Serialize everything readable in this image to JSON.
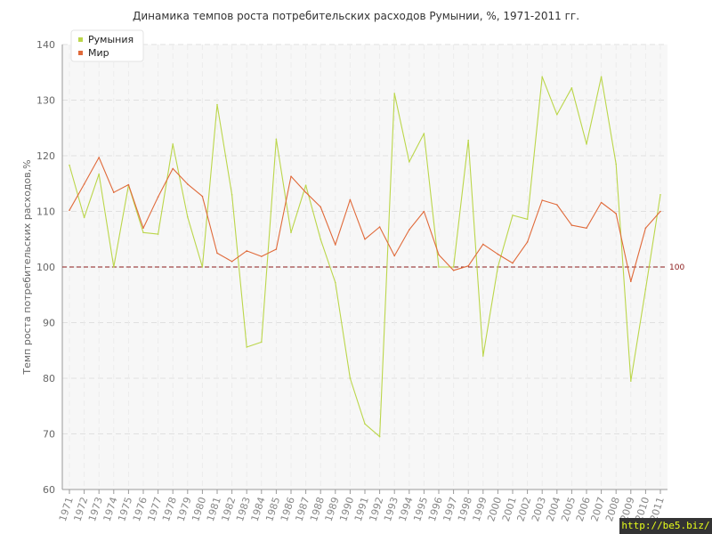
{
  "chart_data": {
    "type": "line",
    "title": "Динамика темпов роста потребительских расходов Румынии, %, 1971-2011 гг.",
    "ylabel": "Темп роста потребительских расходов,%",
    "xlabel": "",
    "ylim": [
      60,
      140
    ],
    "yticks": [
      60,
      70,
      80,
      90,
      100,
      110,
      120,
      130,
      140
    ],
    "categories": [
      "1971",
      "1972",
      "1973",
      "1974",
      "1975",
      "1976",
      "1977",
      "1978",
      "1979",
      "1980",
      "1981",
      "1982",
      "1983",
      "1984",
      "1985",
      "1986",
      "1987",
      "1988",
      "1989",
      "1990",
      "1991",
      "1992",
      "1993",
      "1994",
      "1995",
      "1996",
      "1997",
      "1998",
      "1999",
      "2000",
      "2001",
      "2002",
      "2003",
      "2004",
      "2005",
      "2006",
      "2007",
      "2008",
      "2009",
      "2010",
      "2011"
    ],
    "series": [
      {
        "name": "Румыния",
        "color": "#bbd64a",
        "values": [
          118.3,
          108.9,
          116.7,
          100.0,
          114.7,
          106.2,
          105.9,
          122.1,
          109.0,
          100.0,
          129.2,
          113.0,
          85.6,
          86.5,
          123.0,
          106.2,
          114.7,
          105.0,
          97.2,
          80.0,
          71.8,
          69.5,
          131.2,
          118.9,
          124.0,
          100.0,
          100.0,
          122.8,
          84.0,
          100.0,
          109.3,
          108.6,
          134.2,
          127.4,
          132.2,
          122.1,
          134.2,
          118.5,
          79.5,
          96.0,
          113.0
        ]
      },
      {
        "name": "Мир",
        "color": "#e06a3a",
        "values": [
          110.2,
          114.9,
          119.7,
          113.4,
          114.8,
          107.0,
          112.6,
          117.7,
          114.9,
          112.7,
          102.5,
          101.0,
          102.9,
          101.9,
          103.2,
          116.3,
          113.4,
          110.8,
          104.0,
          112.1,
          105.0,
          107.2,
          102.0,
          106.7,
          110.0,
          102.2,
          99.4,
          100.2,
          104.1,
          102.3,
          100.7,
          104.5,
          112.0,
          111.2,
          107.5,
          107.0,
          111.6,
          109.6,
          97.4,
          107.0,
          110.0
        ]
      }
    ],
    "reference_line": {
      "value": 100,
      "label": "100",
      "color": "#8b1a1a"
    },
    "grid": true,
    "legend": "top-left"
  },
  "watermark": "http://be5.biz/"
}
